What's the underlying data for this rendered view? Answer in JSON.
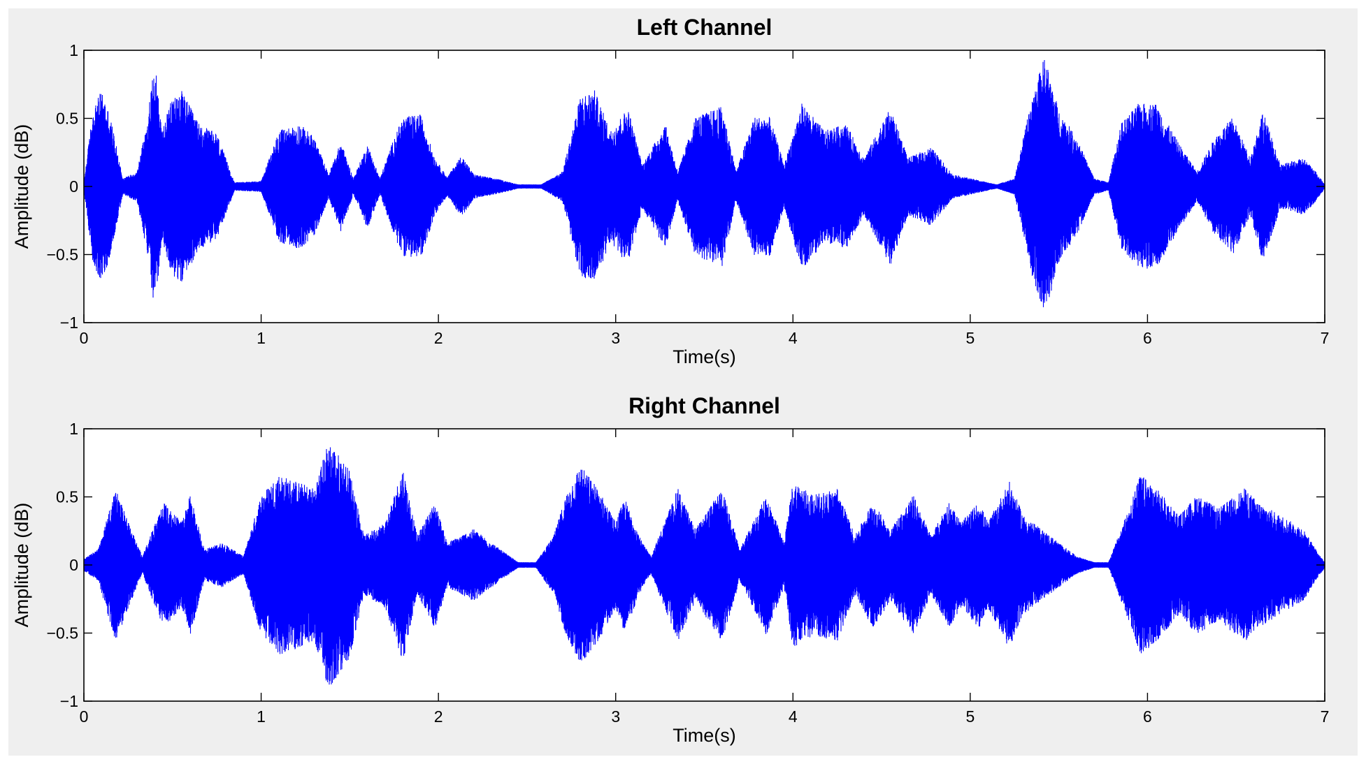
{
  "chart_data": [
    {
      "type": "line",
      "title": "Left Channel",
      "xlabel": "Time(s)",
      "ylabel": "Amplitude (dB)",
      "xlim": [
        0,
        7
      ],
      "ylim": [
        -1,
        1
      ],
      "xticks": [
        0,
        1,
        2,
        3,
        4,
        5,
        6,
        7
      ],
      "yticks": [
        -1,
        -0.5,
        0,
        0.5,
        1
      ],
      "grid": false,
      "series": [
        {
          "color": "#0000ff",
          "noise_floor": 0.01,
          "envelope": [
            {
              "t": 0.0,
              "amp": 0.02
            },
            {
              "t": 0.05,
              "amp": 0.55
            },
            {
              "t": 0.1,
              "amp": 0.7
            },
            {
              "t": 0.15,
              "amp": 0.5
            },
            {
              "t": 0.22,
              "amp": 0.05
            },
            {
              "t": 0.3,
              "amp": 0.1
            },
            {
              "t": 0.36,
              "amp": 0.5
            },
            {
              "t": 0.4,
              "amp": 0.92
            },
            {
              "t": 0.44,
              "amp": 0.4
            },
            {
              "t": 0.5,
              "amp": 0.65
            },
            {
              "t": 0.55,
              "amp": 0.7
            },
            {
              "t": 0.65,
              "amp": 0.45
            },
            {
              "t": 0.75,
              "amp": 0.38
            },
            {
              "t": 0.85,
              "amp": 0.02
            },
            {
              "t": 1.0,
              "amp": 0.03
            },
            {
              "t": 1.1,
              "amp": 0.4
            },
            {
              "t": 1.22,
              "amp": 0.45
            },
            {
              "t": 1.3,
              "amp": 0.35
            },
            {
              "t": 1.38,
              "amp": 0.08
            },
            {
              "t": 1.45,
              "amp": 0.32
            },
            {
              "t": 1.52,
              "amp": 0.05
            },
            {
              "t": 1.6,
              "amp": 0.3
            },
            {
              "t": 1.67,
              "amp": 0.05
            },
            {
              "t": 1.75,
              "amp": 0.35
            },
            {
              "t": 1.8,
              "amp": 0.5
            },
            {
              "t": 1.9,
              "amp": 0.52
            },
            {
              "t": 1.98,
              "amp": 0.2
            },
            {
              "t": 2.05,
              "amp": 0.06
            },
            {
              "t": 2.13,
              "amp": 0.22
            },
            {
              "t": 2.2,
              "amp": 0.08
            },
            {
              "t": 2.35,
              "amp": 0.04
            },
            {
              "t": 2.45,
              "amp": 0.005
            },
            {
              "t": 2.58,
              "amp": 0.005
            },
            {
              "t": 2.7,
              "amp": 0.1
            },
            {
              "t": 2.8,
              "amp": 0.65
            },
            {
              "t": 2.88,
              "amp": 0.7
            },
            {
              "t": 2.97,
              "amp": 0.4
            },
            {
              "t": 3.07,
              "amp": 0.57
            },
            {
              "t": 3.15,
              "amp": 0.15
            },
            {
              "t": 3.28,
              "amp": 0.45
            },
            {
              "t": 3.35,
              "amp": 0.1
            },
            {
              "t": 3.45,
              "amp": 0.5
            },
            {
              "t": 3.6,
              "amp": 0.58
            },
            {
              "t": 3.68,
              "amp": 0.1
            },
            {
              "t": 3.78,
              "amp": 0.5
            },
            {
              "t": 3.87,
              "amp": 0.5
            },
            {
              "t": 3.95,
              "amp": 0.15
            },
            {
              "t": 4.05,
              "amp": 0.6
            },
            {
              "t": 4.18,
              "amp": 0.4
            },
            {
              "t": 4.3,
              "amp": 0.45
            },
            {
              "t": 4.4,
              "amp": 0.2
            },
            {
              "t": 4.55,
              "amp": 0.57
            },
            {
              "t": 4.65,
              "amp": 0.2
            },
            {
              "t": 4.78,
              "amp": 0.28
            },
            {
              "t": 4.9,
              "amp": 0.08
            },
            {
              "t": 5.0,
              "amp": 0.05
            },
            {
              "t": 5.15,
              "amp": 0.005
            },
            {
              "t": 5.25,
              "amp": 0.05
            },
            {
              "t": 5.35,
              "amp": 0.65
            },
            {
              "t": 5.42,
              "amp": 0.95
            },
            {
              "t": 5.5,
              "amp": 0.55
            },
            {
              "t": 5.6,
              "amp": 0.35
            },
            {
              "t": 5.7,
              "amp": 0.05
            },
            {
              "t": 5.78,
              "amp": 0.02
            },
            {
              "t": 5.85,
              "amp": 0.45
            },
            {
              "t": 5.95,
              "amp": 0.6
            },
            {
              "t": 6.05,
              "amp": 0.6
            },
            {
              "t": 6.18,
              "amp": 0.3
            },
            {
              "t": 6.28,
              "amp": 0.1
            },
            {
              "t": 6.38,
              "amp": 0.35
            },
            {
              "t": 6.48,
              "amp": 0.5
            },
            {
              "t": 6.58,
              "amp": 0.2
            },
            {
              "t": 6.65,
              "amp": 0.55
            },
            {
              "t": 6.75,
              "amp": 0.15
            },
            {
              "t": 6.88,
              "amp": 0.2
            },
            {
              "t": 6.95,
              "amp": 0.1
            },
            {
              "t": 7.0,
              "amp": 0.005
            }
          ]
        }
      ]
    },
    {
      "type": "line",
      "title": "Right Channel",
      "xlabel": "Time(s)",
      "ylabel": "Amplitude (dB)",
      "xlim": [
        0,
        7
      ],
      "ylim": [
        -1,
        1
      ],
      "xticks": [
        0,
        1,
        2,
        3,
        4,
        5,
        6,
        7
      ],
      "yticks": [
        -1,
        -0.5,
        0,
        0.5,
        1
      ],
      "grid": false,
      "series": [
        {
          "color": "#0000ff",
          "noise_floor": 0.015,
          "envelope": [
            {
              "t": 0.0,
              "amp": 0.03
            },
            {
              "t": 0.08,
              "amp": 0.1
            },
            {
              "t": 0.18,
              "amp": 0.55
            },
            {
              "t": 0.25,
              "amp": 0.3
            },
            {
              "t": 0.33,
              "amp": 0.05
            },
            {
              "t": 0.45,
              "amp": 0.45
            },
            {
              "t": 0.55,
              "amp": 0.3
            },
            {
              "t": 0.6,
              "amp": 0.5
            },
            {
              "t": 0.68,
              "amp": 0.1
            },
            {
              "t": 0.78,
              "amp": 0.15
            },
            {
              "t": 0.9,
              "amp": 0.05
            },
            {
              "t": 1.0,
              "amp": 0.5
            },
            {
              "t": 1.1,
              "amp": 0.65
            },
            {
              "t": 1.3,
              "amp": 0.55
            },
            {
              "t": 1.38,
              "amp": 0.9
            },
            {
              "t": 1.5,
              "amp": 0.68
            },
            {
              "t": 1.58,
              "amp": 0.2
            },
            {
              "t": 1.7,
              "amp": 0.3
            },
            {
              "t": 1.8,
              "amp": 0.7
            },
            {
              "t": 1.88,
              "amp": 0.2
            },
            {
              "t": 1.98,
              "amp": 0.45
            },
            {
              "t": 2.05,
              "amp": 0.15
            },
            {
              "t": 2.2,
              "amp": 0.25
            },
            {
              "t": 2.35,
              "amp": 0.1
            },
            {
              "t": 2.45,
              "amp": 0.005
            },
            {
              "t": 2.55,
              "amp": 0.005
            },
            {
              "t": 2.65,
              "amp": 0.2
            },
            {
              "t": 2.72,
              "amp": 0.5
            },
            {
              "t": 2.8,
              "amp": 0.72
            },
            {
              "t": 2.9,
              "amp": 0.55
            },
            {
              "t": 3.0,
              "amp": 0.3
            },
            {
              "t": 3.05,
              "amp": 0.48
            },
            {
              "t": 3.15,
              "amp": 0.15
            },
            {
              "t": 3.2,
              "amp": 0.05
            },
            {
              "t": 3.35,
              "amp": 0.55
            },
            {
              "t": 3.45,
              "amp": 0.25
            },
            {
              "t": 3.6,
              "amp": 0.55
            },
            {
              "t": 3.7,
              "amp": 0.1
            },
            {
              "t": 3.85,
              "amp": 0.5
            },
            {
              "t": 3.95,
              "amp": 0.15
            },
            {
              "t": 4.0,
              "amp": 0.6
            },
            {
              "t": 4.12,
              "amp": 0.5
            },
            {
              "t": 4.25,
              "amp": 0.55
            },
            {
              "t": 4.35,
              "amp": 0.2
            },
            {
              "t": 4.45,
              "amp": 0.45
            },
            {
              "t": 4.55,
              "amp": 0.25
            },
            {
              "t": 4.68,
              "amp": 0.5
            },
            {
              "t": 4.78,
              "amp": 0.2
            },
            {
              "t": 4.88,
              "amp": 0.45
            },
            {
              "t": 4.95,
              "amp": 0.3
            },
            {
              "t": 5.05,
              "amp": 0.45
            },
            {
              "t": 5.1,
              "amp": 0.3
            },
            {
              "t": 5.22,
              "amp": 0.6
            },
            {
              "t": 5.3,
              "amp": 0.35
            },
            {
              "t": 5.45,
              "amp": 0.2
            },
            {
              "t": 5.6,
              "amp": 0.05
            },
            {
              "t": 5.7,
              "amp": 0.005
            },
            {
              "t": 5.78,
              "amp": 0.005
            },
            {
              "t": 5.88,
              "amp": 0.35
            },
            {
              "t": 5.96,
              "amp": 0.65
            },
            {
              "t": 6.05,
              "amp": 0.55
            },
            {
              "t": 6.18,
              "amp": 0.35
            },
            {
              "t": 6.28,
              "amp": 0.5
            },
            {
              "t": 6.4,
              "amp": 0.4
            },
            {
              "t": 6.55,
              "amp": 0.55
            },
            {
              "t": 6.62,
              "amp": 0.45
            },
            {
              "t": 6.75,
              "amp": 0.35
            },
            {
              "t": 6.88,
              "amp": 0.25
            },
            {
              "t": 6.95,
              "amp": 0.1
            },
            {
              "t": 7.0,
              "amp": 0.005
            }
          ]
        }
      ]
    }
  ]
}
